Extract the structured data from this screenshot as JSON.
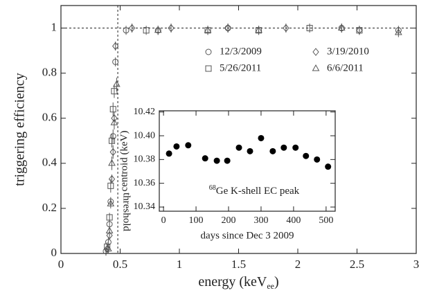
{
  "chart_data": [
    {
      "type": "scatter",
      "ylabel": "triggering efficiency",
      "xlabel": {
        "text": "energy (keV",
        "sub": "ee",
        "suffix": ")"
      },
      "xlim": [
        0,
        3
      ],
      "ylim": [
        0,
        1.1
      ],
      "xticks": [
        0,
        0.5,
        1,
        1.5,
        2,
        2.5,
        3
      ],
      "yticks": [
        0,
        0.2,
        0.4,
        0.6,
        0.8,
        1
      ],
      "vline": {
        "value": 0.48,
        "label": "threshold"
      },
      "hline": 1,
      "legend": "upper right",
      "series": [
        {
          "name": "12/3/2009",
          "marker": "circle",
          "color": "#555555",
          "x": [
            0.38,
            0.4,
            0.41,
            0.42,
            0.44,
            0.46,
            0.55,
            0.82,
            1.41,
            2.37,
            2.85
          ],
          "values": [
            0.01,
            0.05,
            0.13,
            0.23,
            0.52,
            0.85,
            0.99,
            0.99,
            1.0,
            1.0,
            0.99
          ],
          "yerr": [
            0.02,
            0.02,
            0.02,
            0.02,
            0.03,
            0.02,
            0.02,
            0.02,
            0.02,
            0.02,
            0.02
          ]
        },
        {
          "name": "3/19/2010",
          "marker": "diamond",
          "color": "#555555",
          "x": [
            0.39,
            0.41,
            0.43,
            0.44,
            0.45,
            0.46,
            0.6,
            0.93,
            1.41,
            1.9,
            2.52
          ],
          "values": [
            0.02,
            0.08,
            0.33,
            0.45,
            0.6,
            0.92,
            1.0,
            1.0,
            1.0,
            1.0,
            0.99
          ],
          "yerr": [
            0.02,
            0.02,
            0.02,
            0.03,
            0.03,
            0.02,
            0.02,
            0.02,
            0.02,
            0.02,
            0.02
          ]
        },
        {
          "name": "5/26/2011",
          "marker": "square",
          "color": "#555555",
          "x": [
            0.39,
            0.41,
            0.42,
            0.43,
            0.44,
            0.45,
            0.72,
            1.24,
            1.67,
            2.1,
            2.52
          ],
          "values": [
            0.03,
            0.16,
            0.3,
            0.5,
            0.64,
            0.72,
            0.99,
            0.99,
            0.99,
            1.0,
            0.99
          ],
          "yerr": [
            0.02,
            0.02,
            0.03,
            0.03,
            0.03,
            0.03,
            0.02,
            0.02,
            0.02,
            0.02,
            0.02
          ]
        },
        {
          "name": "6/6/2011",
          "marker": "triangle",
          "color": "#555555",
          "x": [
            0.4,
            0.41,
            0.42,
            0.43,
            0.45,
            0.47,
            0.82,
            1.24,
            1.67,
            2.37,
            2.85
          ],
          "values": [
            0.02,
            0.1,
            0.22,
            0.4,
            0.58,
            0.75,
            0.99,
            0.99,
            0.99,
            1.0,
            0.98
          ],
          "yerr": [
            0.02,
            0.02,
            0.02,
            0.03,
            0.03,
            0.03,
            0.02,
            0.02,
            0.02,
            0.02,
            0.02
          ]
        }
      ]
    },
    {
      "type": "scatter",
      "ylabel": "centroid (keV)",
      "xlabel": "days since Dec 3 2009",
      "annotation": {
        "sup": "68",
        "text": "Ge K-shell EC peak"
      },
      "xlim": [
        -13,
        528
      ],
      "ylim": [
        10.3365,
        10.421
      ],
      "xticks": [
        0,
        100,
        200,
        300,
        400,
        500
      ],
      "yticks": [
        10.34,
        10.36,
        10.38,
        {
          "value": 10.4,
          "label": "10.40"
        },
        10.42
      ],
      "series": [
        {
          "marker": "dot",
          "color": "#000000",
          "x": [
            17,
            40,
            76,
            128,
            164,
            196,
            232,
            266,
            300,
            336,
            370,
            406,
            438,
            472,
            506
          ],
          "values": [
            10.385,
            10.391,
            10.392,
            10.381,
            10.379,
            10.379,
            10.39,
            10.387,
            10.398,
            10.387,
            10.39,
            10.39,
            10.383,
            10.38,
            10.374
          ]
        }
      ]
    }
  ]
}
